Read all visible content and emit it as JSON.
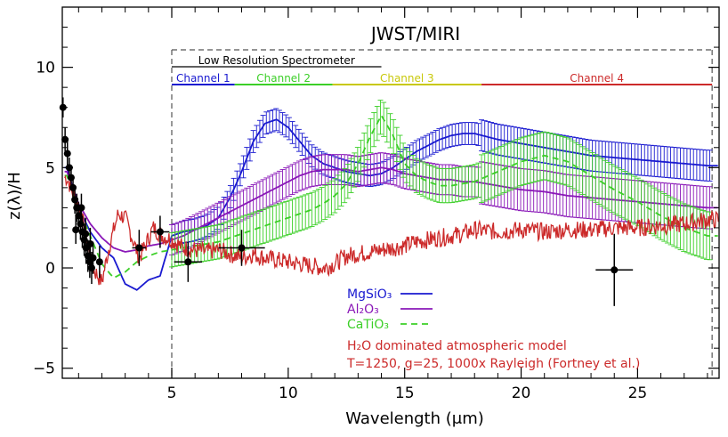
{
  "chart_data": {
    "type": "line",
    "title": "JWST/MIRI",
    "xlabel": "Wavelength (μm)",
    "ylabel": "z(λ)/H",
    "xlim": [
      0.3,
      28.5
    ],
    "ylim": [
      -5.5,
      13
    ],
    "xticks": [
      5,
      10,
      15,
      20,
      25
    ],
    "yticks": [
      -5,
      0,
      5,
      10
    ],
    "grid": false,
    "legend_position": "bottom-center",
    "instrument_bands": {
      "lrs": {
        "label": "Low Resolution Spectrometer",
        "range": [
          5,
          14
        ]
      },
      "miri_top": {
        "range": [
          5,
          28.2
        ]
      },
      "channels": [
        {
          "label": "Channel 1",
          "range": [
            5,
            7.7
          ],
          "color": "#1a1ad0"
        },
        {
          "label": "Channel 2",
          "range": [
            7.7,
            11.9
          ],
          "color": "#3ccf28"
        },
        {
          "label": "Channel 3",
          "range": [
            11.9,
            18.3
          ],
          "color": "#c8c80a"
        },
        {
          "label": "Channel 4",
          "range": [
            18.3,
            28.2
          ],
          "color": "#cc2a2a"
        }
      ],
      "boundaries": [
        5,
        28.2
      ]
    },
    "series": [
      {
        "name": "MgSiO₃",
        "color": "#1a1ad0",
        "style": "solid",
        "x": [
          0.5,
          1.0,
          1.5,
          2.0,
          2.5,
          3.0,
          3.5,
          4.0,
          4.5,
          5.0,
          5.5,
          6.0,
          6.5,
          7.0,
          7.5,
          8.0,
          8.5,
          9.0,
          9.5,
          10.0,
          10.5,
          11.0,
          11.5,
          12.0,
          12.5,
          13.0,
          13.5,
          14.0,
          14.5,
          15.0,
          15.5,
          16.0,
          16.5,
          17.0,
          17.5,
          18.0,
          19.0,
          20.0,
          21.0,
          22.0,
          23.0,
          24.0,
          25.0,
          26.0,
          27.0,
          28.0
        ],
        "y": [
          5.0,
          3.0,
          1.8,
          1.0,
          0.5,
          -0.8,
          -1.1,
          -0.6,
          -0.4,
          1.6,
          1.8,
          1.9,
          2.1,
          2.5,
          3.5,
          4.8,
          6.3,
          7.2,
          7.4,
          7.0,
          6.3,
          5.6,
          5.2,
          5.0,
          4.8,
          4.7,
          4.6,
          4.7,
          5.0,
          5.4,
          5.8,
          6.1,
          6.4,
          6.6,
          6.7,
          6.7,
          6.4,
          6.2,
          6.0,
          5.8,
          5.6,
          5.5,
          5.4,
          5.3,
          5.2,
          5.1
        ],
        "error": 0.55
      },
      {
        "name": "Al₂O₃",
        "color": "#8a18b8",
        "style": "solid",
        "x": [
          0.5,
          1.0,
          1.5,
          2.0,
          2.5,
          3.0,
          3.5,
          4.0,
          4.5,
          5.0,
          5.5,
          6.0,
          6.5,
          7.0,
          7.5,
          8.0,
          8.5,
          9.0,
          9.5,
          10.0,
          10.5,
          11.0,
          11.5,
          12.0,
          12.5,
          13.0,
          13.5,
          14.0,
          14.5,
          15.0,
          15.5,
          16.0,
          16.5,
          17.0,
          17.5,
          18.0,
          19.0,
          20.0,
          21.0,
          22.0,
          23.0,
          24.0,
          25.0,
          26.0,
          27.0,
          28.0
        ],
        "y": [
          4.8,
          3.2,
          2.2,
          1.5,
          1.0,
          0.8,
          0.9,
          1.1,
          1.2,
          1.4,
          1.6,
          1.9,
          2.2,
          2.5,
          2.8,
          3.1,
          3.4,
          3.7,
          4.0,
          4.3,
          4.6,
          4.8,
          4.9,
          4.9,
          4.9,
          4.8,
          4.9,
          5.0,
          4.9,
          4.7,
          4.6,
          4.5,
          4.4,
          4.4,
          4.3,
          4.3,
          4.1,
          3.9,
          3.8,
          3.6,
          3.5,
          3.4,
          3.3,
          3.2,
          3.1,
          3.0
        ],
        "error": 0.75
      },
      {
        "name": "CaTiO₃",
        "color": "#3ccf28",
        "style": "dashed",
        "x": [
          0.5,
          1.0,
          1.5,
          2.0,
          2.5,
          3.0,
          3.5,
          4.0,
          4.5,
          5.0,
          5.5,
          6.0,
          6.5,
          7.0,
          7.5,
          8.0,
          8.5,
          9.0,
          9.5,
          10.0,
          10.5,
          11.0,
          11.5,
          12.0,
          12.5,
          13.0,
          13.5,
          14.0,
          14.5,
          15.0,
          15.5,
          16.0,
          16.5,
          17.0,
          17.5,
          18.0,
          19.0,
          20.0,
          21.0,
          22.0,
          23.0,
          24.0,
          25.0,
          26.0,
          27.0,
          28.0
        ],
        "y": [
          4.6,
          3.0,
          1.6,
          0.2,
          -0.5,
          -0.2,
          0.3,
          0.6,
          0.8,
          0.9,
          1.0,
          1.1,
          1.2,
          1.3,
          1.5,
          1.7,
          1.9,
          2.1,
          2.3,
          2.5,
          2.7,
          2.9,
          3.2,
          3.6,
          4.2,
          5.2,
          6.5,
          7.6,
          6.6,
          5.2,
          4.6,
          4.3,
          4.1,
          4.1,
          4.2,
          4.3,
          4.8,
          5.3,
          5.6,
          5.3,
          4.6,
          3.9,
          3.3,
          2.6,
          2.0,
          1.6
        ],
        "error": 0.85
      },
      {
        "name": "H₂O dominated atmospheric model",
        "color": "#cc2a2a",
        "style": "noisy",
        "x": [
          0.5,
          1.0,
          1.3,
          1.6,
          2.0,
          2.3,
          2.7,
          3.0,
          3.3,
          3.6,
          3.9,
          4.2,
          4.6,
          5.0,
          5.5,
          6.0,
          6.5,
          7.0,
          7.5,
          8.0,
          8.5,
          9.0,
          9.5,
          10.0,
          10.5,
          11.0,
          11.5,
          12.0,
          12.5,
          13.0,
          13.5,
          14.0,
          14.5,
          15.0,
          15.5,
          16.0,
          16.5,
          17.0,
          17.5,
          18.0,
          19.0,
          20.0,
          21.0,
          22.0,
          23.0,
          24.0,
          25.0,
          26.0,
          27.0,
          28.0
        ],
        "y": [
          4.5,
          3.0,
          1.8,
          0.0,
          -0.7,
          1.0,
          2.7,
          2.5,
          1.5,
          0.5,
          1.2,
          2.0,
          1.6,
          1.4,
          1.0,
          0.9,
          0.8,
          0.9,
          0.7,
          0.5,
          0.7,
          0.5,
          0.4,
          0.3,
          0.2,
          0.1,
          0.0,
          0.2,
          0.6,
          0.7,
          0.8,
          0.9,
          1.0,
          1.1,
          1.3,
          1.4,
          1.5,
          1.6,
          1.7,
          1.9,
          1.8,
          1.9,
          1.8,
          1.9,
          1.9,
          2.0,
          2.0,
          2.1,
          2.2,
          2.4
        ],
        "error": 0
      }
    ],
    "observations": {
      "color": "#000000",
      "points": [
        {
          "x": 0.33,
          "y": 8.0,
          "yerr": 0.5,
          "xerr": 0.05
        },
        {
          "x": 0.42,
          "y": 6.4,
          "yerr": 0.6,
          "xerr": 0.05
        },
        {
          "x": 0.52,
          "y": 5.7,
          "yerr": 0.6,
          "xerr": 0.05
        },
        {
          "x": 0.6,
          "y": 5.0,
          "yerr": 0.5,
          "xerr": 0.05
        },
        {
          "x": 0.68,
          "y": 4.5,
          "yerr": 0.6,
          "xerr": 0.05
        },
        {
          "x": 0.76,
          "y": 4.0,
          "yerr": 0.6,
          "xerr": 0.05
        },
        {
          "x": 0.84,
          "y": 3.4,
          "yerr": 0.7,
          "xerr": 0.05
        },
        {
          "x": 0.92,
          "y": 3.0,
          "yerr": 0.7,
          "xerr": 0.05
        },
        {
          "x": 1.0,
          "y": 2.6,
          "yerr": 0.7,
          "xerr": 0.05
        },
        {
          "x": 1.08,
          "y": 2.2,
          "yerr": 0.8,
          "xerr": 0.05
        },
        {
          "x": 1.16,
          "y": 1.8,
          "yerr": 0.8,
          "xerr": 0.05
        },
        {
          "x": 1.24,
          "y": 1.4,
          "yerr": 0.8,
          "xerr": 0.05
        },
        {
          "x": 1.32,
          "y": 1.0,
          "yerr": 0.8,
          "xerr": 0.05
        },
        {
          "x": 1.4,
          "y": 0.6,
          "yerr": 0.8,
          "xerr": 0.05
        },
        {
          "x": 1.48,
          "y": 0.3,
          "yerr": 0.8,
          "xerr": 0.05
        },
        {
          "x": 1.56,
          "y": 0.0,
          "yerr": 0.8,
          "xerr": 0.05
        },
        {
          "x": 0.88,
          "y": 1.9,
          "yerr": 0.7,
          "xerr": 0.05
        },
        {
          "x": 1.12,
          "y": 3.0,
          "yerr": 0.7,
          "xerr": 0.05
        },
        {
          "x": 1.3,
          "y": 1.7,
          "yerr": 0.8,
          "xerr": 0.05
        },
        {
          "x": 1.5,
          "y": 1.2,
          "yerr": 0.8,
          "xerr": 0.05
        },
        {
          "x": 1.62,
          "y": 0.5,
          "yerr": 0.8,
          "xerr": 0.05
        },
        {
          "x": 1.9,
          "y": 0.3,
          "yerr": 0.8,
          "xerr": 0.1
        },
        {
          "x": 3.6,
          "y": 1.0,
          "yerr": 0.9,
          "xerr": 0.3
        },
        {
          "x": 4.5,
          "y": 1.8,
          "yerr": 0.8,
          "xerr": 0.4
        },
        {
          "x": 5.7,
          "y": 0.3,
          "yerr": 1.0,
          "xerr": 0.6
        },
        {
          "x": 8.0,
          "y": 1.0,
          "yerr": 0.9,
          "xerr": 1.0
        },
        {
          "x": 24.0,
          "y": -0.1,
          "yerr": 1.8,
          "xerr": 0.8
        }
      ]
    },
    "legend_extra": [
      "T=1250, g=25, 1000x Rayleigh (Fortney et al.)"
    ]
  }
}
